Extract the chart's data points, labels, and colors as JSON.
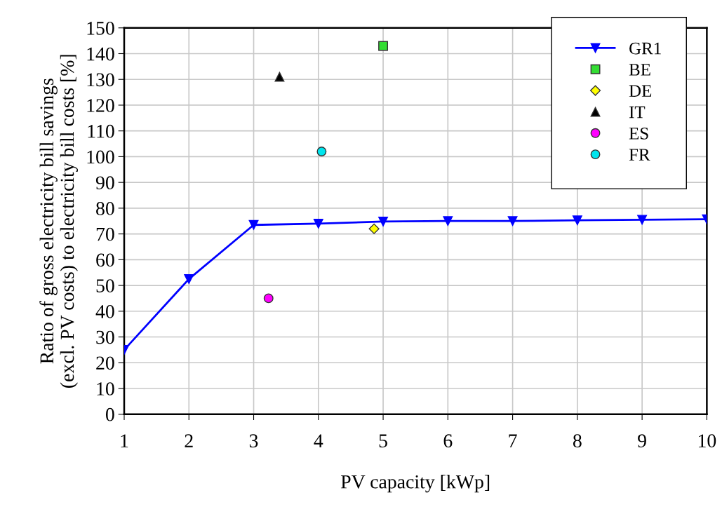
{
  "chart_data": {
    "type": "line",
    "xlabel": "PV capacity [kWp]",
    "ylabel": "Ratio of gross electricity bill savings\n(excl. PV costs) to electricity bill costs [%]",
    "xlim": [
      1,
      10
    ],
    "xticks": [
      1,
      2,
      3,
      4,
      5,
      6,
      7,
      8,
      9,
      10
    ],
    "ylim": [
      0,
      150
    ],
    "yticks": [
      0,
      10,
      20,
      30,
      40,
      50,
      60,
      70,
      80,
      90,
      100,
      110,
      120,
      130,
      140,
      150
    ],
    "grid": true,
    "legend": "top right",
    "series": [
      {
        "name": "GR1",
        "color": "#0000ff",
        "marker": "triangle_down",
        "x": [
          1,
          2,
          3,
          4,
          5,
          6,
          7,
          8,
          9,
          10
        ],
        "values": [
          25,
          52.5,
          73.5,
          74,
          74.8,
          75,
          75,
          75.3,
          75.5,
          75.7
        ]
      },
      {
        "name": "BE",
        "type": "scatter",
        "color": "#33dd33",
        "marker": "square",
        "x": [
          5
        ],
        "values": [
          143
        ]
      },
      {
        "name": "DE",
        "type": "scatter",
        "color": "#ffff00",
        "marker": "diamond",
        "x": [
          4.86
        ],
        "values": [
          72
        ]
      },
      {
        "name": "IT",
        "type": "scatter",
        "color": "#000000",
        "marker": "triangle",
        "x": [
          3.4
        ],
        "values": [
          131
        ]
      },
      {
        "name": "ES",
        "type": "scatter",
        "color": "#ff00ff",
        "marker": "circle",
        "x": [
          3.23
        ],
        "values": [
          45
        ]
      },
      {
        "name": "FR",
        "type": "scatter",
        "color": "#00e5ee",
        "marker": "circle",
        "x": [
          4.05
        ],
        "values": [
          102
        ]
      }
    ]
  }
}
